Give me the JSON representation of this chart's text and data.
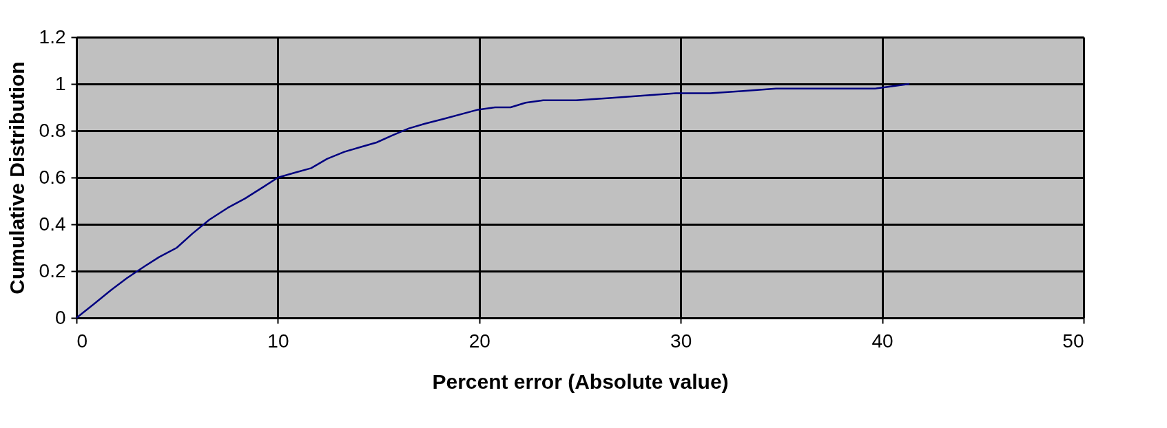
{
  "chart_data": {
    "type": "line",
    "xlabel": "Percent error (Absolute value)",
    "ylabel": "Cumulative Distribution",
    "x": [
      0,
      0.88,
      1.73,
      2.5,
      3.37,
      4.1,
      4.98,
      5.75,
      6.6,
      7.5,
      8.36,
      9.28,
      10,
      10.8,
      11.65,
      12.44,
      13.3,
      14.1,
      14.9,
      15.67,
      16.5,
      17.3,
      18.2,
      19.93,
      20.78,
      21.55,
      22.3,
      23.17,
      24.8,
      26.46,
      28.1,
      29.76,
      31.46,
      33.1,
      34.73,
      36.4,
      38.0,
      39.64,
      41.35
    ],
    "series": [
      {
        "color": "#000080",
        "values": [
          0,
          0.06,
          0.12,
          0.17,
          0.22,
          0.26,
          0.3,
          0.36,
          0.42,
          0.47,
          0.51,
          0.56,
          0.6,
          0.62,
          0.64,
          0.68,
          0.71,
          0.73,
          0.75,
          0.78,
          0.81,
          0.83,
          0.85,
          0.89,
          0.9,
          0.9,
          0.92,
          0.93,
          0.93,
          0.94,
          0.95,
          0.96,
          0.96,
          0.97,
          0.98,
          0.98,
          0.98,
          0.98,
          1.0
        ]
      }
    ],
    "xlim": [
      0,
      50
    ],
    "xticks": [
      0,
      10,
      20,
      30,
      40,
      50
    ],
    "ylim": [
      0,
      1.2
    ],
    "yticks": [
      0,
      0.2,
      0.4,
      0.6,
      0.8,
      1,
      1.2
    ],
    "grid": true,
    "marker": "none",
    "line_style": "solid"
  }
}
